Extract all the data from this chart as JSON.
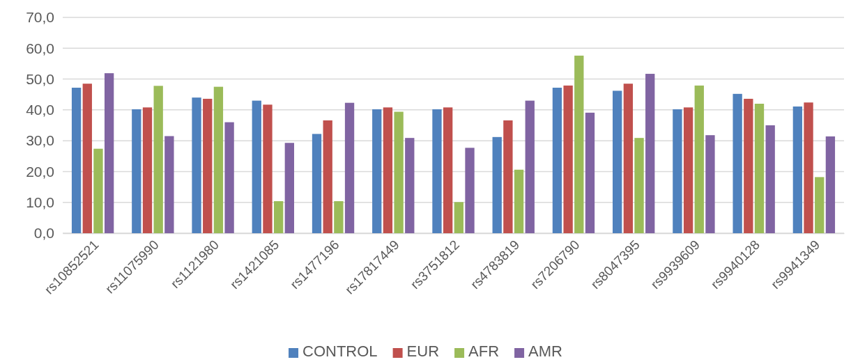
{
  "chart_data": {
    "type": "bar",
    "categories": [
      "rs10852521",
      "rs11075990",
      "rs1121980",
      "rs1421085",
      "rs1477196",
      "rs17817449",
      "rs3751812",
      "rs4783819",
      "rs7206790",
      "rs8047395",
      "rs9939609",
      "rs9940128",
      "rs9941349"
    ],
    "series": [
      {
        "name": "CONTROL",
        "color": "#4f81bd",
        "values": [
          47.2,
          40.2,
          44.0,
          43.0,
          32.2,
          40.2,
          40.2,
          31.2,
          47.2,
          46.2,
          40.2,
          45.2,
          41.1
        ]
      },
      {
        "name": "EUR",
        "color": "#c0504d",
        "values": [
          48.5,
          40.8,
          43.6,
          41.7,
          36.6,
          40.8,
          40.8,
          36.6,
          47.9,
          48.5,
          40.8,
          43.6,
          42.4
        ]
      },
      {
        "name": "AFR",
        "color": "#9bbb59",
        "values": [
          27.4,
          47.8,
          47.5,
          10.4,
          10.4,
          39.4,
          10.1,
          20.6,
          57.6,
          30.9,
          47.9,
          42.0,
          18.2
        ]
      },
      {
        "name": "AMR",
        "color": "#8064a2",
        "values": [
          51.9,
          31.5,
          36.0,
          29.3,
          42.3,
          30.9,
          27.7,
          43.0,
          39.1,
          51.7,
          31.8,
          35.0,
          31.4
        ]
      }
    ],
    "ylim": [
      0,
      70
    ],
    "yticks": [
      {
        "value": 0,
        "label": "0,0"
      },
      {
        "value": 10,
        "label": "10,0"
      },
      {
        "value": 20,
        "label": "20,0"
      },
      {
        "value": 30,
        "label": "30,0"
      },
      {
        "value": 40,
        "label": "40,0"
      },
      {
        "value": 50,
        "label": "50,0"
      },
      {
        "value": 60,
        "label": "60,0"
      },
      {
        "value": 70,
        "label": "70,0"
      }
    ],
    "grid": "y",
    "legend": "bottom"
  }
}
